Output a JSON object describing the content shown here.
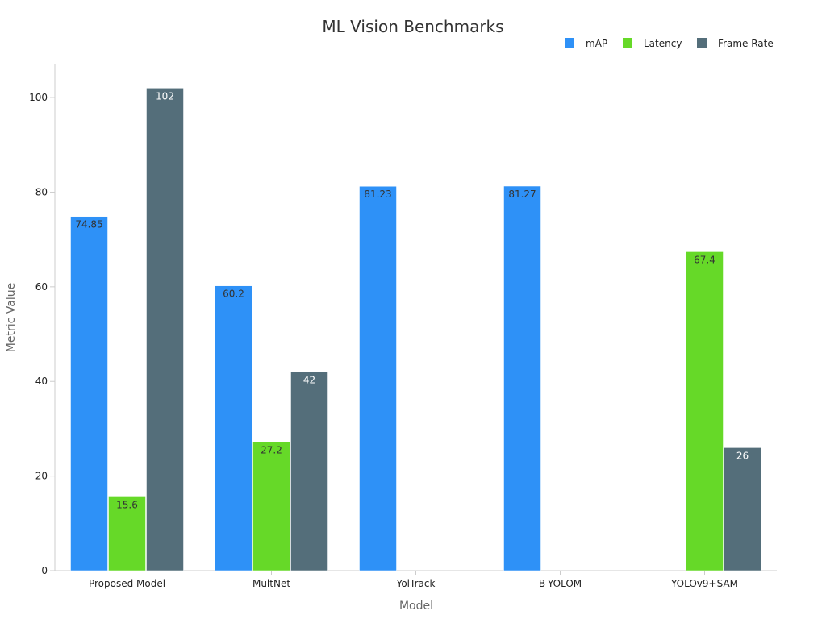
{
  "chart_data": {
    "type": "bar",
    "title": "ML Vision Benchmarks",
    "xlabel": "Model",
    "ylabel": "Metric Value",
    "categories": [
      "Proposed Model",
      "MultNet",
      "YolTrack",
      "B-YOLOM",
      "YOLOv9+SAM"
    ],
    "series": [
      {
        "name": "mAP",
        "color": "#2e91f7",
        "label_color": "#333333",
        "values": [
          74.85,
          60.2,
          81.23,
          81.27,
          null
        ]
      },
      {
        "name": "Latency",
        "color": "#66d928",
        "label_color": "#333333",
        "values": [
          15.6,
          27.2,
          null,
          null,
          67.4
        ]
      },
      {
        "name": "Frame Rate",
        "color": "#546e7a",
        "label_color": "#ffffff",
        "values": [
          102,
          42,
          null,
          null,
          26
        ]
      }
    ],
    "ylim": [
      0,
      107
    ],
    "yticks": [
      0,
      20,
      40,
      60,
      80,
      100
    ],
    "grid": false,
    "legend": "top-right"
  }
}
